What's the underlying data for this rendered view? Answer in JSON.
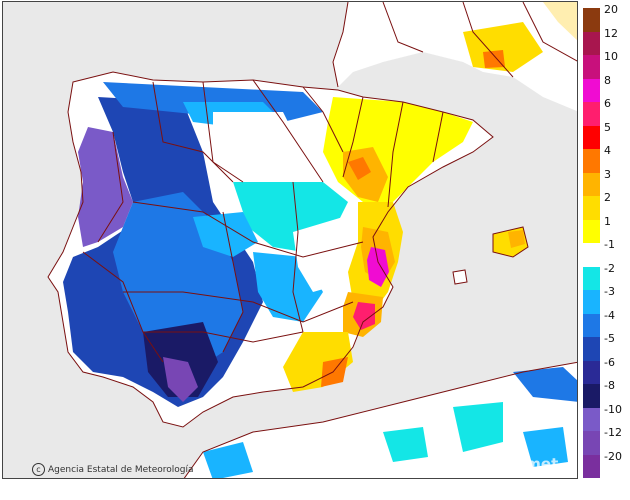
{
  "map": {
    "credit": "Agencia Estatal de Meteorología",
    "watermark": "aemet"
  },
  "legend": {
    "entries": [
      {
        "label": "20",
        "color": "#8b3a0f"
      },
      {
        "label": "12",
        "color": "#a8164e"
      },
      {
        "label": "10",
        "color": "#c8107c"
      },
      {
        "label": "8",
        "color": "#f00cd2"
      },
      {
        "label": "6",
        "color": "#ff1e6e"
      },
      {
        "label": "5",
        "color": "#ff0000"
      },
      {
        "label": "4",
        "color": "#ff7800"
      },
      {
        "label": "3",
        "color": "#ffb400"
      },
      {
        "label": "2",
        "color": "#ffdd00"
      },
      {
        "label": "1",
        "color": "#ffff00"
      },
      {
        "label": "-1",
        "color": "#ffffff"
      },
      {
        "label": "-2",
        "color": "#14e6e6"
      },
      {
        "label": "-3",
        "color": "#19b4ff"
      },
      {
        "label": "-4",
        "color": "#1e78e6"
      },
      {
        "label": "-5",
        "color": "#1e46b4"
      },
      {
        "label": "-6",
        "color": "#2a2a96"
      },
      {
        "label": "-8",
        "color": "#1a1a66"
      },
      {
        "label": "-10",
        "color": "#7a5ac8"
      },
      {
        "label": "-12",
        "color": "#7846b4"
      },
      {
        "label": "-20",
        "color": "#7a2f9e"
      }
    ]
  }
}
